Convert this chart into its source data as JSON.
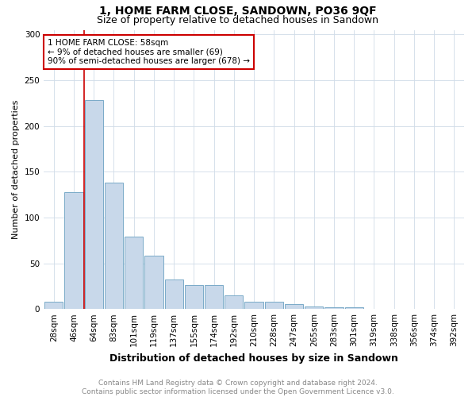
{
  "title": "1, HOME FARM CLOSE, SANDOWN, PO36 9QF",
  "subtitle": "Size of property relative to detached houses in Sandown",
  "xlabel": "Distribution of detached houses by size in Sandown",
  "ylabel": "Number of detached properties",
  "bar_labels": [
    "28sqm",
    "46sqm",
    "64sqm",
    "83sqm",
    "101sqm",
    "119sqm",
    "137sqm",
    "155sqm",
    "174sqm",
    "192sqm",
    "210sqm",
    "228sqm",
    "247sqm",
    "265sqm",
    "283sqm",
    "301sqm",
    "319sqm",
    "338sqm",
    "356sqm",
    "374sqm",
    "392sqm"
  ],
  "bar_values": [
    8,
    128,
    228,
    138,
    79,
    58,
    32,
    26,
    26,
    15,
    8,
    8,
    5,
    3,
    2,
    2,
    0,
    0,
    0,
    0,
    0
  ],
  "bar_color": "#c8d8ea",
  "bar_edgecolor": "#7aaac8",
  "grid_color": "#d0dce8",
  "background_color": "#ffffff",
  "vline_x_index": 1.5,
  "vline_color": "#cc0000",
  "annotation_text": "1 HOME FARM CLOSE: 58sqm\n← 9% of detached houses are smaller (69)\n90% of semi-detached houses are larger (678) →",
  "annotation_box_color": "#ffffff",
  "annotation_box_edgecolor": "#cc0000",
  "ylim": [
    0,
    305
  ],
  "yticks": [
    0,
    50,
    100,
    150,
    200,
    250,
    300
  ],
  "footnote": "Contains HM Land Registry data © Crown copyright and database right 2024.\nContains public sector information licensed under the Open Government Licence v3.0.",
  "title_fontsize": 10,
  "subtitle_fontsize": 9,
  "xlabel_fontsize": 9,
  "ylabel_fontsize": 8,
  "tick_fontsize": 7.5,
  "annotation_fontsize": 7.5,
  "footnote_fontsize": 6.5
}
